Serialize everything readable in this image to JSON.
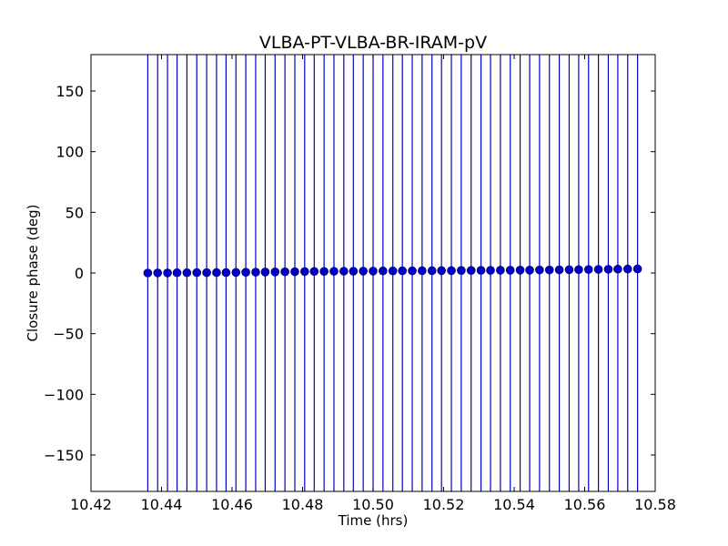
{
  "chart_data": {
    "type": "scatter",
    "title": "VLBA-PT-VLBA-BR-IRAM-pV",
    "xlabel": "Time (hrs)",
    "ylabel": "Closure phase (deg)",
    "xlim": [
      10.42,
      10.58
    ],
    "ylim": [
      -180,
      180
    ],
    "xticks": [
      10.42,
      10.44,
      10.46,
      10.48,
      10.5,
      10.52,
      10.54,
      10.56,
      10.58
    ],
    "xtick_labels": [
      "10.42",
      "10.44",
      "10.46",
      "10.48",
      "10.50",
      "10.52",
      "10.54",
      "10.56",
      "10.58"
    ],
    "yticks": [
      -150,
      -100,
      -50,
      0,
      50,
      100,
      150
    ],
    "ytick_labels": [
      "−150",
      "−100",
      "−50",
      "0",
      "50",
      "100",
      "150"
    ],
    "grid": false,
    "error_bars": "vertical, spanning full y range",
    "color": "#0000cc",
    "x": [
      10.4361,
      10.4389,
      10.4417,
      10.4444,
      10.4472,
      10.45,
      10.4528,
      10.4556,
      10.4583,
      10.4611,
      10.4639,
      10.4667,
      10.4694,
      10.4722,
      10.475,
      10.4778,
      10.4806,
      10.4833,
      10.4861,
      10.4889,
      10.4917,
      10.4944,
      10.4972,
      10.5,
      10.5028,
      10.5056,
      10.5083,
      10.5111,
      10.5139,
      10.5167,
      10.5194,
      10.5222,
      10.525,
      10.5278,
      10.5306,
      10.5333,
      10.5361,
      10.5389,
      10.5417,
      10.5444,
      10.5472,
      10.55,
      10.5528,
      10.5556,
      10.5583,
      10.5611,
      10.5639,
      10.5667,
      10.5694,
      10.5722,
      10.575
    ],
    "y": [
      0.0,
      0.1,
      0.1,
      0.2,
      0.2,
      0.3,
      0.3,
      0.4,
      0.4,
      0.5,
      0.6,
      0.7,
      0.8,
      0.9,
      1.0,
      1.1,
      1.2,
      1.3,
      1.3,
      1.4,
      1.5,
      1.5,
      1.6,
      1.6,
      1.7,
      1.7,
      1.8,
      1.8,
      1.9,
      1.9,
      2.0,
      2.0,
      2.1,
      2.1,
      2.2,
      2.2,
      2.3,
      2.3,
      2.4,
      2.4,
      2.5,
      2.5,
      2.6,
      2.7,
      2.8,
      2.9,
      3.0,
      3.1,
      3.2,
      3.3,
      3.4
    ],
    "yerr_low": -180,
    "yerr_high": 180
  }
}
